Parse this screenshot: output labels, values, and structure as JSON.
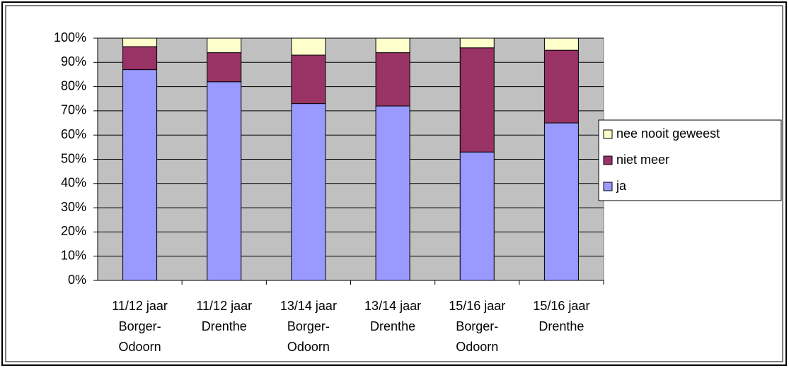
{
  "chart_data": {
    "type": "stacked_bar",
    "categories": [
      [
        "11/12 jaar",
        "Borger-",
        "Odoorn"
      ],
      [
        "11/12 jaar",
        "Drenthe"
      ],
      [
        "13/14 jaar",
        "Borger-",
        "Odoorn"
      ],
      [
        "13/14 jaar",
        "Drenthe"
      ],
      [
        "15/16 jaar",
        "Borger-",
        "Odoorn"
      ],
      [
        "15/16 jaar",
        "Drenthe"
      ]
    ],
    "series": [
      {
        "name": "ja",
        "color": "#9999ff",
        "values": [
          87,
          82,
          73,
          72,
          53,
          65
        ]
      },
      {
        "name": "niet meer",
        "color": "#993366",
        "values": [
          9.5,
          12,
          20,
          22,
          43,
          30
        ]
      },
      {
        "name": "nee nooit geweest",
        "color": "#ffffcc",
        "values": [
          3.5,
          6,
          7,
          6,
          4,
          5
        ]
      }
    ],
    "ylim": [
      0,
      100
    ],
    "yticks": [
      {
        "value": 0,
        "label": "0%"
      },
      {
        "value": 10,
        "label": "10%"
      },
      {
        "value": 20,
        "label": "20%"
      },
      {
        "value": 30,
        "label": "30%"
      },
      {
        "value": 40,
        "label": "40%"
      },
      {
        "value": 50,
        "label": "50%"
      },
      {
        "value": 60,
        "label": "60%"
      },
      {
        "value": 70,
        "label": "70%"
      },
      {
        "value": 80,
        "label": "80%"
      },
      {
        "value": 90,
        "label": "90%"
      },
      {
        "value": 100,
        "label": "100%"
      }
    ],
    "grid": true,
    "legend": "right"
  }
}
